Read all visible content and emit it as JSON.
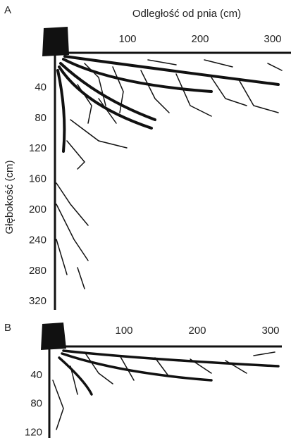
{
  "panels": [
    {
      "label": "A",
      "x_axis_title": "Odległość od pnia (cm)",
      "y_axis_title": "Głębokość (cm)",
      "x_ticks": [
        100,
        200,
        300
      ],
      "y_ticks": [
        40,
        80,
        120,
        160,
        200,
        240,
        280,
        320
      ]
    },
    {
      "label": "B",
      "x_ticks": [
        100,
        200,
        300
      ],
      "y_ticks": [
        40,
        80,
        120
      ]
    }
  ]
}
